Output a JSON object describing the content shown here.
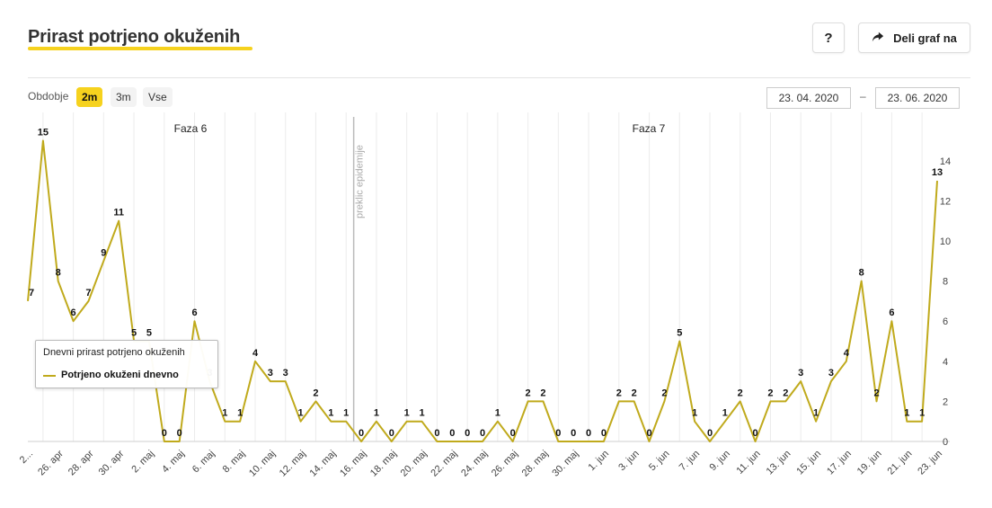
{
  "header": {
    "title": "Prirast potrjeno okuženih",
    "help_label": "?",
    "share_label": "Deli graf na"
  },
  "controls": {
    "period_label": "Obdobje",
    "periods": [
      "2m",
      "3m",
      "Vse"
    ],
    "active_period": "2m",
    "date_from": "23. 04. 2020",
    "date_separator": "–",
    "date_to": "23. 06. 2020"
  },
  "colors": {
    "accent": "#f6d21e",
    "series": "#c0aa1c",
    "grid": "#ececec",
    "marker_line": "#bbbbbb"
  },
  "tooltip": {
    "title": "Dnevni prirast potrjeno okuženih",
    "series_label": "Potrjeno okuženi dnevno"
  },
  "chart_data": {
    "type": "line",
    "title": "",
    "xlabel": "",
    "ylabel": "",
    "ylim": [
      0,
      15.5
    ],
    "y_ticks": [
      0,
      2,
      4,
      6,
      8,
      10,
      12,
      14
    ],
    "grid": true,
    "x_tick_labels": [
      "2...",
      "26. apr",
      "28. apr",
      "30. apr",
      "2. maj",
      "4. maj",
      "6. maj",
      "8. maj",
      "10. maj",
      "12. maj",
      "14. maj",
      "16. maj",
      "18. maj",
      "20. maj",
      "22. maj",
      "24. maj",
      "26. maj",
      "28. maj",
      "30. maj",
      "1. jun",
      "3. jun",
      "5. jun",
      "7. jun",
      "9. jun",
      "11. jun",
      "13. jun",
      "15. jun",
      "17. jun",
      "19. jun",
      "21. jun",
      "23. jun"
    ],
    "phases": [
      "Faza 6",
      "Faza 7"
    ],
    "event_label": "preklic epidemije",
    "series": [
      {
        "name": "Potrjeno okuženi dnevno",
        "values": [
          7,
          15,
          8,
          6,
          7,
          9,
          11,
          5,
          5,
          0,
          0,
          6,
          3,
          1,
          1,
          4,
          3,
          3,
          1,
          2,
          1,
          1,
          0,
          1,
          0,
          1,
          1,
          0,
          0,
          0,
          0,
          1,
          0,
          2,
          2,
          0,
          0,
          0,
          0,
          2,
          2,
          0,
          2,
          5,
          1,
          0,
          1,
          2,
          0,
          2,
          2,
          3,
          1,
          3,
          4,
          8,
          2,
          6,
          1,
          1,
          13
        ]
      }
    ]
  }
}
